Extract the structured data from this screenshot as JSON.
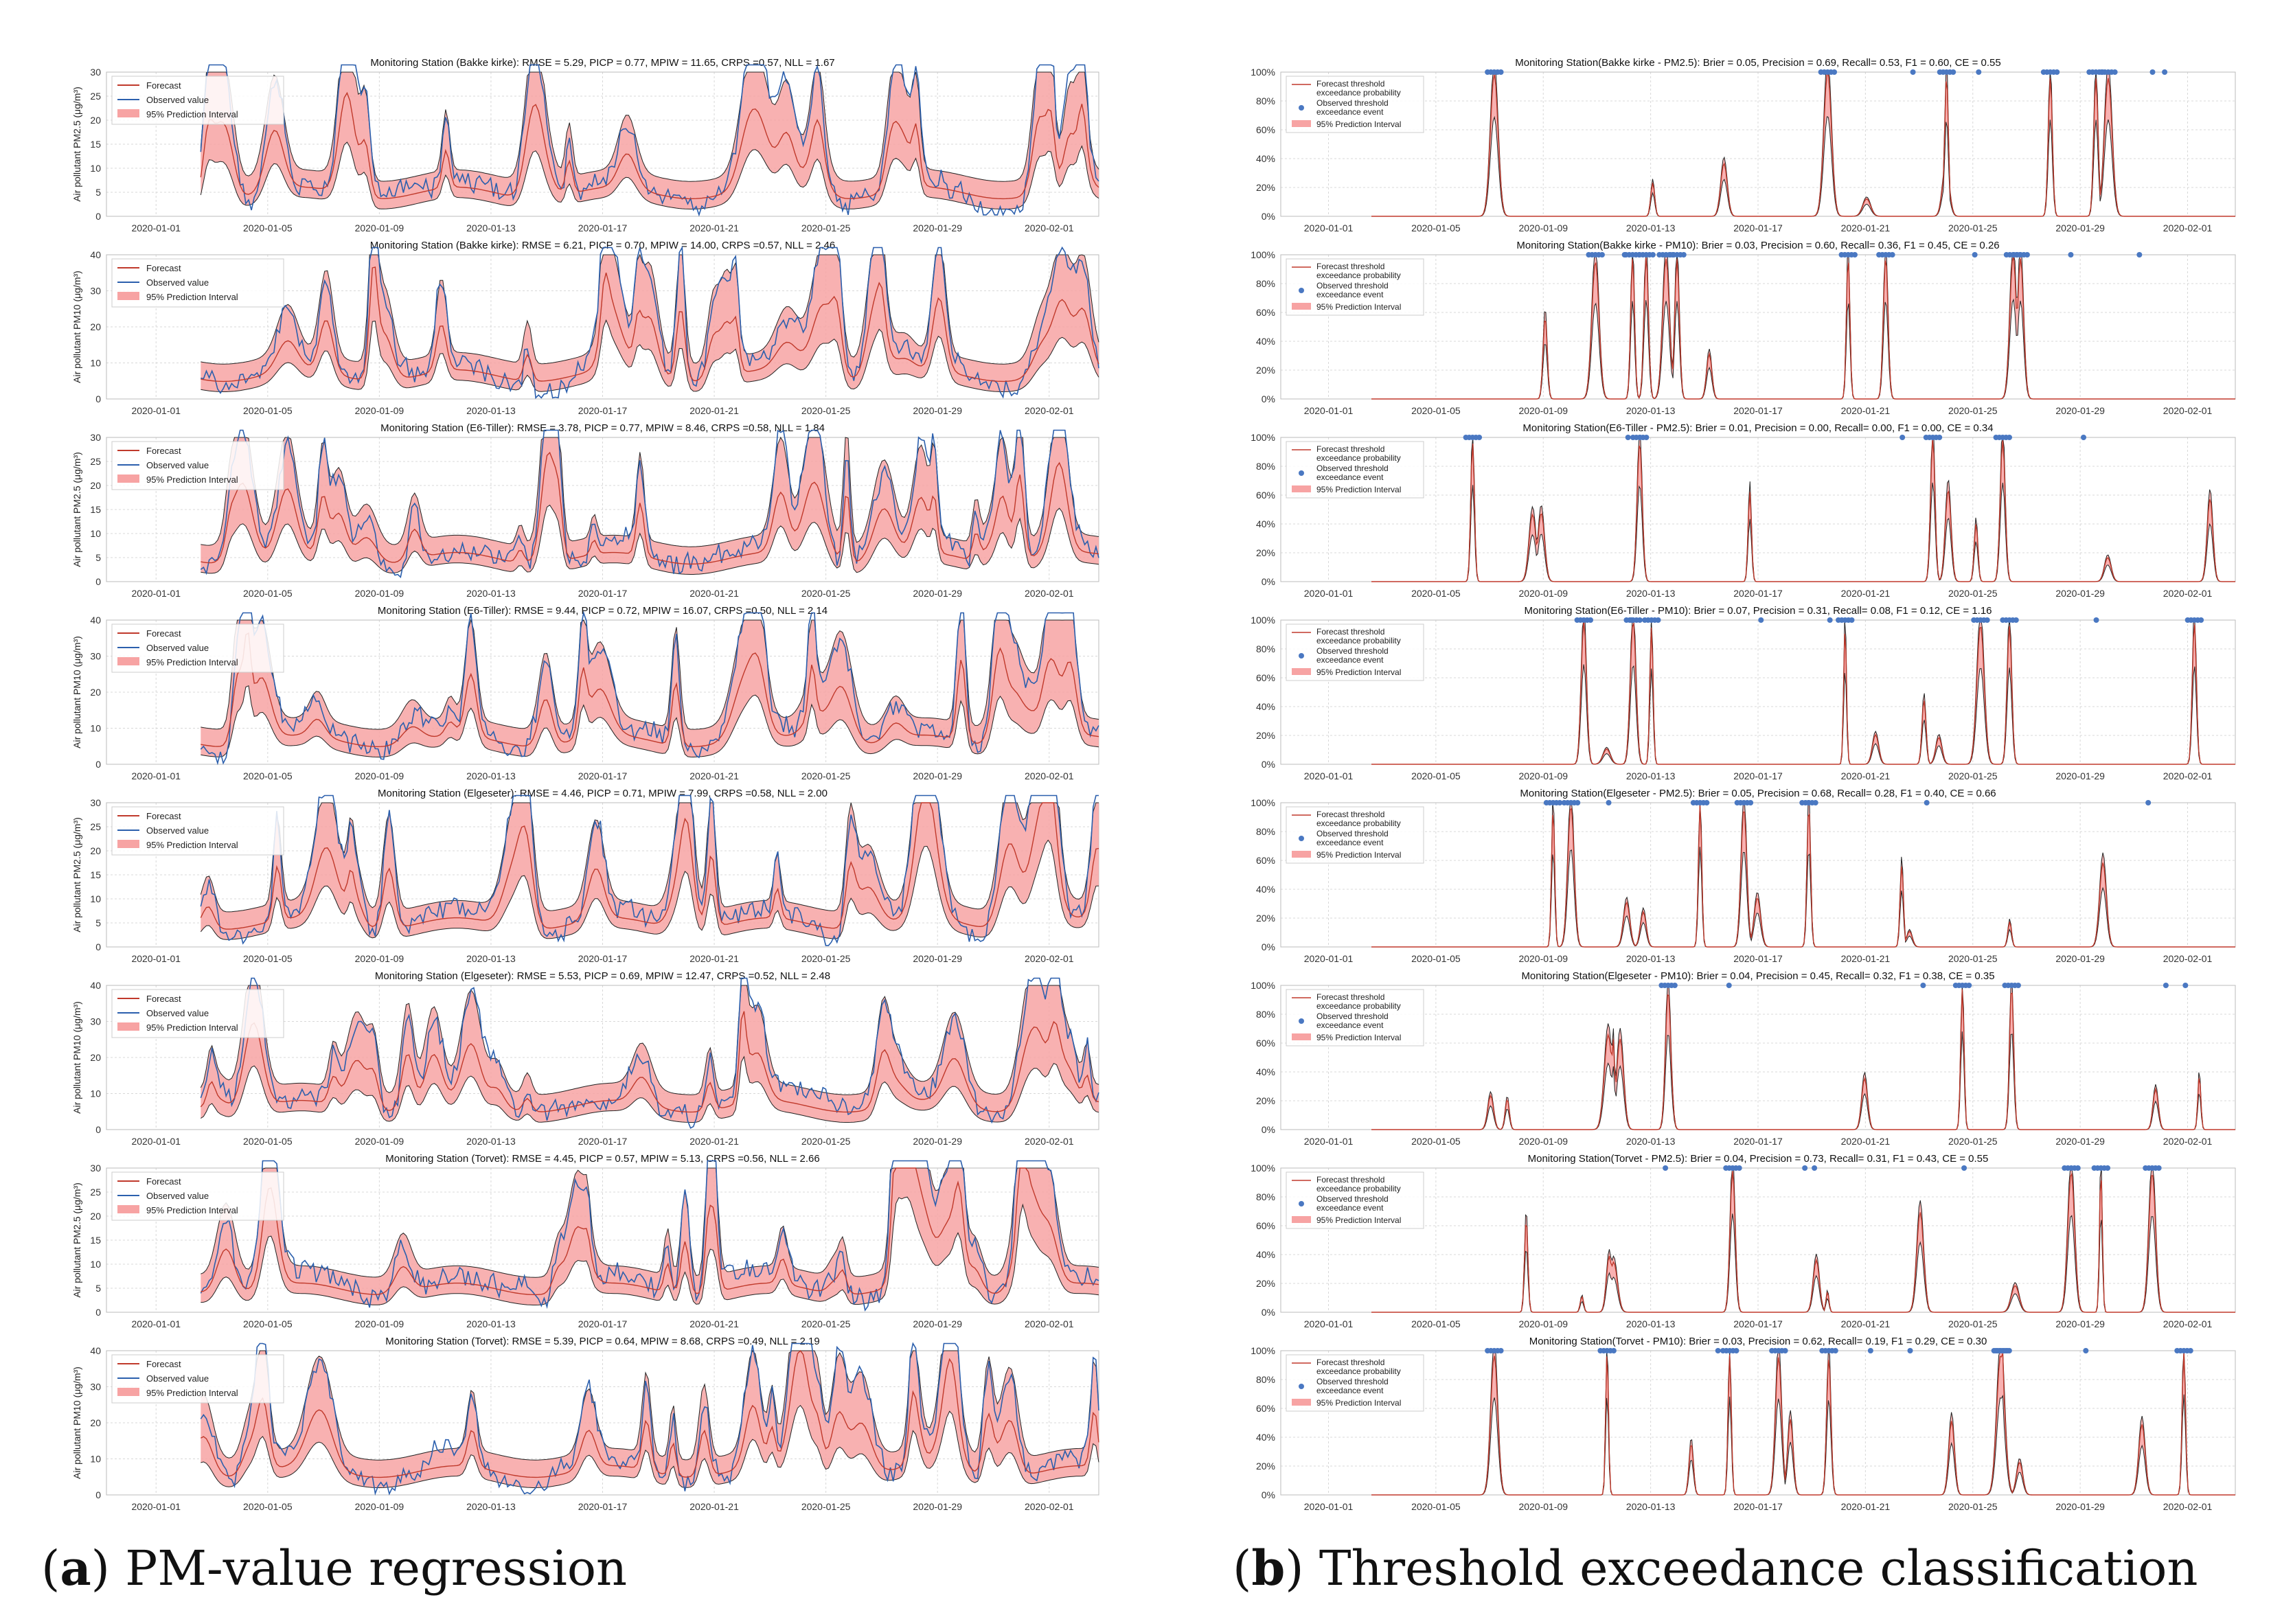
{
  "colors": {
    "forecast": "#c0392b",
    "observed": "#2b5fad",
    "band_fill": "#f7a3a3",
    "band_edge": "#222222",
    "grid": "#d8d8d8",
    "obs_dot": "#4a78c2",
    "axis": "#555555"
  },
  "x_tick_labels": [
    "2020-01-01",
    "2020-01-05",
    "2020-01-09",
    "2020-01-13",
    "2020-01-17",
    "2020-01-21",
    "2020-01-25",
    "2020-01-29",
    "2020-02-01"
  ],
  "regression_legend": [
    "Forecast",
    "Observed value",
    "95% Prediction Interval"
  ],
  "classification_legend": [
    "Forecast threshold",
    "exceedance probability",
    "Observed threshold",
    "exceedance event",
    "95% Prediction Interval"
  ],
  "captions": {
    "left_letter": "a",
    "left_text": "PM-value regression",
    "right_letter": "b",
    "right_text": "Threshold exceedance classification"
  },
  "chart_data": [
    {
      "panel": "a",
      "index": 1,
      "type": "area",
      "title": "Monitoring Station (Bakke kirke): RMSE = 5.29, PICP = 0.77, MPIW = 11.65, CRPS =0.57, NLL = 1.67",
      "ylabel": "Air pollutant PM2.5 (μg/m³)",
      "ylim": [
        0,
        30
      ],
      "yticks": [
        "0",
        "5",
        "10",
        "15",
        "20",
        "25",
        "30"
      ]
    },
    {
      "panel": "a",
      "index": 2,
      "type": "area",
      "title": "Monitoring Station (Bakke kirke): RMSE = 6.21, PICP = 0.70, MPIW = 14.00, CRPS =0.57, NLL = 2.46",
      "ylabel": "Air pollutant PM10 (μg/m³)",
      "ylim": [
        0,
        40
      ],
      "yticks": [
        "0",
        "10",
        "20",
        "30",
        "40"
      ]
    },
    {
      "panel": "a",
      "index": 3,
      "type": "area",
      "title": "Monitoring Station (E6-Tiller): RMSE = 3.78, PICP = 0.77, MPIW = 8.46, CRPS =0.58, NLL = 1.84",
      "ylabel": "Air pollutant PM2.5 (μg/m³)",
      "ylim": [
        0,
        30
      ],
      "yticks": [
        "0",
        "5",
        "10",
        "15",
        "20",
        "25",
        "30"
      ]
    },
    {
      "panel": "a",
      "index": 4,
      "type": "area",
      "title": "Monitoring Station (E6-Tiller): RMSE = 9.44, PICP = 0.72, MPIW = 16.07, CRPS =0.50, NLL = 2.14",
      "ylabel": "Air pollutant PM10 (μg/m³)",
      "ylim": [
        0,
        40
      ],
      "yticks": [
        "0",
        "10",
        "20",
        "30",
        "40"
      ]
    },
    {
      "panel": "a",
      "index": 5,
      "type": "area",
      "title": "Monitoring Station (Elgeseter): RMSE = 4.46, PICP = 0.71, MPIW = 7.99, CRPS =0.58, NLL = 2.00",
      "ylabel": "Air pollutant PM2.5 (μg/m³)",
      "ylim": [
        0,
        30
      ],
      "yticks": [
        "0",
        "5",
        "10",
        "15",
        "20",
        "25",
        "30"
      ]
    },
    {
      "panel": "a",
      "index": 6,
      "type": "area",
      "title": "Monitoring Station (Elgeseter): RMSE = 5.53, PICP = 0.69, MPIW = 12.47, CRPS =0.52, NLL = 2.48",
      "ylabel": "Air pollutant PM10 (μg/m³)",
      "ylim": [
        0,
        40
      ],
      "yticks": [
        "0",
        "10",
        "20",
        "30",
        "40"
      ]
    },
    {
      "panel": "a",
      "index": 7,
      "type": "area",
      "title": "Monitoring Station (Torvet): RMSE = 4.45, PICP = 0.57, MPIW = 5.13, CRPS =0.56, NLL = 2.66",
      "ylabel": "Air pollutant PM2.5 (μg/m³)",
      "ylim": [
        0,
        30
      ],
      "yticks": [
        "0",
        "5",
        "10",
        "15",
        "20",
        "25",
        "30"
      ]
    },
    {
      "panel": "a",
      "index": 8,
      "type": "area",
      "title": "Monitoring Station (Torvet): RMSE = 5.39, PICP = 0.64, MPIW = 8.68, CRPS =0.49, NLL = 2.19",
      "ylabel": "Air pollutant PM10 (μg/m³)",
      "ylim": [
        0,
        40
      ],
      "yticks": [
        "0",
        "10",
        "20",
        "30",
        "40"
      ]
    },
    {
      "panel": "b",
      "index": 1,
      "type": "area",
      "title": "Monitoring Station(Bakke kirke - PM2.5): Brier = 0.05, Precision = 0.69, Recall= 0.53, F1 = 0.60, CE = 0.55",
      "ylim": [
        0,
        1
      ],
      "yticks": [
        "0%",
        "20%",
        "40%",
        "60%",
        "80%",
        "100%"
      ]
    },
    {
      "panel": "b",
      "index": 2,
      "type": "area",
      "title": "Monitoring Station(Bakke kirke - PM10): Brier = 0.03, Precision = 0.60, Recall= 0.36, F1 = 0.45, CE = 0.26",
      "ylim": [
        0,
        1
      ],
      "yticks": [
        "0%",
        "20%",
        "40%",
        "60%",
        "80%",
        "100%"
      ]
    },
    {
      "panel": "b",
      "index": 3,
      "type": "area",
      "title": "Monitoring Station(E6-Tiller - PM2.5): Brier = 0.01, Precision = 0.00, Recall= 0.00, F1 = 0.00, CE = 0.34",
      "ylim": [
        0,
        1
      ],
      "yticks": [
        "0%",
        "20%",
        "40%",
        "60%",
        "80%",
        "100%"
      ]
    },
    {
      "panel": "b",
      "index": 4,
      "type": "area",
      "title": "Monitoring Station(E6-Tiller - PM10): Brier = 0.07, Precision = 0.31, Recall= 0.08, F1 = 0.12, CE = 1.16",
      "ylim": [
        0,
        1
      ],
      "yticks": [
        "0%",
        "20%",
        "40%",
        "60%",
        "80%",
        "100%"
      ]
    },
    {
      "panel": "b",
      "index": 5,
      "type": "area",
      "title": "Monitoring Station(Elgeseter - PM2.5): Brier = 0.05, Precision = 0.68, Recall= 0.28, F1 = 0.40, CE = 0.66",
      "ylim": [
        0,
        1
      ],
      "yticks": [
        "0%",
        "20%",
        "40%",
        "60%",
        "80%",
        "100%"
      ]
    },
    {
      "panel": "b",
      "index": 6,
      "type": "area",
      "title": "Monitoring Station(Elgeseter - PM10): Brier = 0.04, Precision = 0.45, Recall= 0.32, F1 = 0.38, CE = 0.35",
      "ylim": [
        0,
        1
      ],
      "yticks": [
        "0%",
        "20%",
        "40%",
        "60%",
        "80%",
        "100%"
      ]
    },
    {
      "panel": "b",
      "index": 7,
      "type": "area",
      "title": "Monitoring Station(Torvet - PM2.5): Brier = 0.04, Precision = 0.73, Recall= 0.31, F1 = 0.43, CE = 0.55",
      "ylim": [
        0,
        1
      ],
      "yticks": [
        "0%",
        "20%",
        "40%",
        "60%",
        "80%",
        "100%"
      ]
    },
    {
      "panel": "b",
      "index": 8,
      "type": "area",
      "title": "Monitoring Station(Torvet - PM10): Brier = 0.03, Precision = 0.62, Recall= 0.19, F1 = 0.29, CE = 0.30",
      "ylim": [
        0,
        1
      ],
      "yticks": [
        "0%",
        "20%",
        "40%",
        "60%",
        "80%",
        "100%"
      ]
    }
  ]
}
